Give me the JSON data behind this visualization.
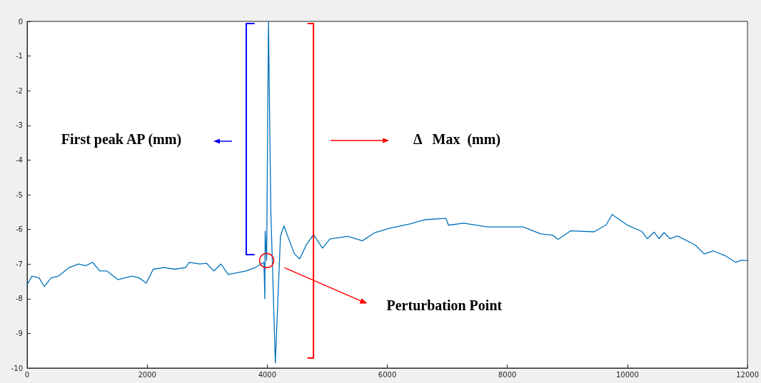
{
  "chart_data": {
    "type": "line",
    "series": [
      {
        "color": "#0072bd",
        "x": [
          0,
          80,
          200,
          285,
          400,
          520,
          700,
          855,
          975,
          1090,
          1210,
          1330,
          1510,
          1745,
          1865,
          1985,
          2100,
          2280,
          2460,
          2640,
          2700,
          2875,
          2990,
          3110,
          3230,
          3350,
          3500,
          3650,
          3800,
          3945,
          3960,
          3965,
          3990,
          4020,
          4060,
          4135,
          4220,
          4280,
          4320,
          4450,
          4540,
          4650,
          4771,
          4920,
          5043,
          5340,
          5585,
          5785,
          6035,
          6380,
          6630,
          6975,
          7020,
          7270,
          7665,
          8260,
          8555,
          8755,
          8845,
          9055,
          9445,
          9645,
          9745,
          9990,
          10240,
          10330,
          10445,
          10525,
          10610,
          10710,
          10835,
          11130,
          11280,
          11430,
          11630,
          11800,
          11900,
          12000
        ],
        "values": [
          -7.6,
          -7.35,
          -7.4,
          -7.65,
          -7.4,
          -7.35,
          -7.1,
          -7.0,
          -7.05,
          -6.95,
          -7.2,
          -7.2,
          -7.45,
          -7.35,
          -7.4,
          -7.55,
          -7.15,
          -7.1,
          -7.15,
          -7.1,
          -6.95,
          -7.0,
          -6.98,
          -7.2,
          -7.0,
          -7.3,
          -7.25,
          -7.2,
          -7.1,
          -6.95,
          -8.0,
          -6.05,
          -6.9,
          0,
          -5.5,
          -9.85,
          -6.2,
          -5.9,
          -6.1,
          -6.7,
          -6.85,
          -6.45,
          -6.15,
          -6.54,
          -6.28,
          -6.2,
          -6.33,
          -6.1,
          -5.97,
          -5.84,
          -5.72,
          -5.68,
          -5.88,
          -5.82,
          -5.93,
          -5.93,
          -6.13,
          -6.17,
          -6.29,
          -6.04,
          -6.07,
          -5.87,
          -5.57,
          -5.87,
          -6.06,
          -6.27,
          -6.08,
          -6.27,
          -6.09,
          -6.27,
          -6.19,
          -6.45,
          -6.71,
          -6.62,
          -6.76,
          -6.95,
          -6.89,
          -6.9
        ]
      },
      {
        "color": "#0000ff",
        "x": [
          3780,
          3650,
          3650,
          3780
        ],
        "values": [
          -0.06,
          -0.06,
          -6.73,
          -6.73
        ]
      },
      {
        "color": "#ff0000",
        "x": [
          4680,
          4770,
          4770,
          4680
        ],
        "values": [
          -0.06,
          -0.06,
          -9.71,
          -9.71
        ]
      }
    ],
    "xlim": [
      0,
      12000
    ],
    "xticks": [
      0,
      2000,
      4000,
      6000,
      8000,
      10000,
      12000
    ],
    "ylim": [
      -10,
      0
    ],
    "yticks": [
      -10,
      -9,
      -8,
      -7,
      -6,
      -5,
      -4,
      -3,
      -2,
      -1,
      0
    ],
    "grid": false,
    "marker": "none",
    "line_style": "solid",
    "annotations": [
      "First peak AP (mm)",
      "Δ   Max  (mm)",
      "Perturbation Point"
    ]
  }
}
